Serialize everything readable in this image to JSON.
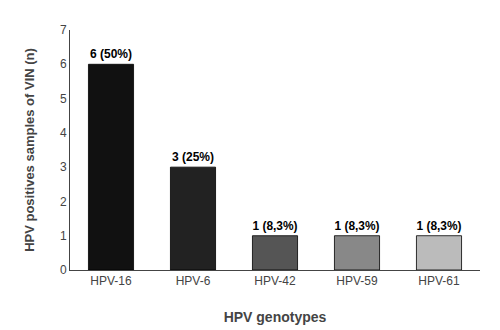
{
  "chart_data": {
    "type": "bar",
    "categories": [
      "HPV-16",
      "HPV-6",
      "HPV-42",
      "HPV-59",
      "HPV-61"
    ],
    "values": [
      6,
      3,
      1,
      1,
      1
    ],
    "value_labels": [
      "6 (50%)",
      "3 (25%)",
      "1 (8,3%)",
      "1 (8,3%)",
      "1 (8,3%)"
    ],
    "data_labels": true,
    "colors": [
      "#111111",
      "#222222",
      "#555555",
      "#888888",
      "#bbbbbb"
    ],
    "xlabel": "HPV genotypes",
    "ylabel": "HPV positives samples of VIN (n)",
    "ylim": [
      0,
      7
    ],
    "yticks": [
      0,
      1,
      2,
      3,
      4,
      5,
      6,
      7
    ],
    "grid": false
  }
}
